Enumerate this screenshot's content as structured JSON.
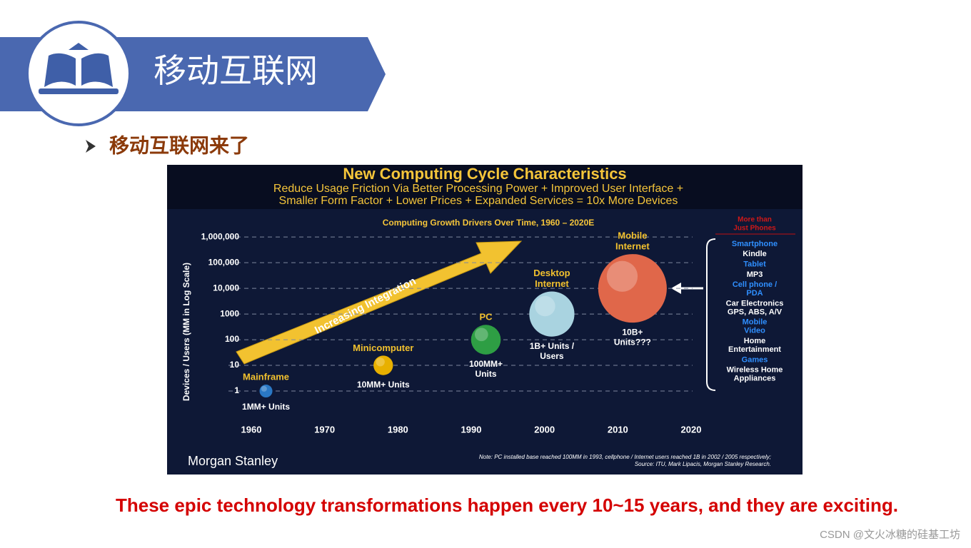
{
  "header": {
    "title": "移动互联网"
  },
  "subtitle": "移动互联网来了",
  "chart_data": {
    "type": "scatter",
    "title": "New Computing Cycle Characteristics",
    "subtitle": [
      "Reduce Usage Friction Via Better Processing Power + Improved User Interface +",
      "Smaller Form Factor + Lower Prices + Expanded Services = 10x More Devices"
    ],
    "plot_title": "Computing Growth Drivers Over Time, 1960 – 2020E",
    "y_label": "Devices / Users (MM in Log Scale)",
    "annotation": "Increasing Integration",
    "log_y": true,
    "grid": true,
    "xlim": [
      1960,
      2020
    ],
    "xticks": [
      1960,
      1970,
      1980,
      1990,
      2000,
      2010,
      2020
    ],
    "ylim": [
      0.1,
      3000000
    ],
    "yticks": [
      1,
      10,
      100,
      1000,
      {
        "value": 10000,
        "label": "10,000"
      },
      {
        "value": 100000,
        "label": "100,000"
      },
      {
        "value": 1000000,
        "label": "1,000,000"
      }
    ],
    "series": [
      {
        "label": [
          "Mainframe"
        ],
        "note": [
          "1MM+ Units"
        ],
        "color": "#2a78c4",
        "x": [
          1962
        ],
        "values": [
          1
        ]
      },
      {
        "label": [
          "Minicomputer"
        ],
        "note": [
          "10MM+ Units"
        ],
        "color": "#e8b000",
        "x": [
          1978
        ],
        "values": [
          10
        ]
      },
      {
        "label": [
          "PC"
        ],
        "note": [
          "100MM+",
          "Units"
        ],
        "color": "#2e9e44",
        "x": [
          1992
        ],
        "values": [
          100
        ]
      },
      {
        "label": [
          "Desktop",
          "Internet"
        ],
        "note": [
          "1B+ Units /",
          "Users"
        ],
        "color": "#a9d3e0",
        "x": [
          2001
        ],
        "values": [
          1000
        ]
      },
      {
        "label": [
          "Mobile",
          "Internet"
        ],
        "note": [
          "10B+",
          "Units???"
        ],
        "color": "#e0674a",
        "x": [
          2012
        ],
        "values": [
          10000
        ]
      }
    ],
    "side_panel": {
      "title": [
        "More than",
        "Just Phones"
      ],
      "items": [
        {
          "text": [
            "Smartphone"
          ],
          "color": "#2f8fff"
        },
        {
          "text": [
            "Kindle"
          ],
          "color": "#ffffff"
        },
        {
          "text": [
            "Tablet"
          ],
          "color": "#2f8fff"
        },
        {
          "text": [
            "MP3"
          ],
          "color": "#ffffff"
        },
        {
          "text": [
            "Cell phone /",
            "PDA"
          ],
          "color": "#2f8fff"
        },
        {
          "text": [
            "Car Electronics",
            "GPS, ABS, A/V"
          ],
          "color": "#ffffff"
        },
        {
          "text": [
            "Mobile",
            "Video"
          ],
          "color": "#2f8fff"
        },
        {
          "text": [
            "Home",
            "Entertainment"
          ],
          "color": "#ffffff"
        },
        {
          "text": [
            "Games"
          ],
          "color": "#2f8fff"
        },
        {
          "text": [
            "Wireless Home",
            "Appliances"
          ],
          "color": "#ffffff"
        }
      ]
    },
    "source": "Morgan Stanley",
    "footnote": [
      "Note: PC installed base reached 100MM in 1993, cellphone / Internet users reached 1B in 2002 / 2005 respectively;",
      "Source: ITU, Mark Lipacis, Morgan Stanley Research."
    ]
  },
  "caption": "These epic technology transformations happen every 10~15 years, and they are exciting.",
  "watermark": "CSDN @文火冰糖的硅基工坊"
}
